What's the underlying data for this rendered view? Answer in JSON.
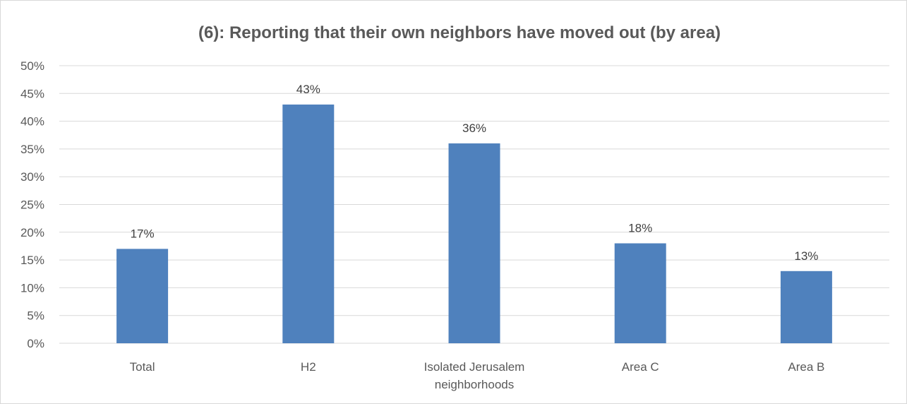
{
  "chart_data": {
    "type": "bar",
    "title": "(6): Reporting that their own neighbors have moved out (by area)",
    "categories": [
      "Total",
      "H2",
      "Isolated Jerusalem neighborhoods",
      "Area C",
      "Area B"
    ],
    "category_lines": [
      [
        "Total"
      ],
      [
        "H2"
      ],
      [
        "Isolated Jerusalem",
        "neighborhoods"
      ],
      [
        "Area C"
      ],
      [
        "Area B"
      ]
    ],
    "values": [
      17,
      43,
      36,
      18,
      13
    ],
    "data_labels": [
      "17%",
      "43%",
      "36%",
      "18%",
      "13%"
    ],
    "ylim": [
      0,
      50
    ],
    "yticks": [
      0,
      5,
      10,
      15,
      20,
      25,
      30,
      35,
      40,
      45,
      50
    ],
    "ytick_labels": [
      "0%",
      "5%",
      "10%",
      "15%",
      "20%",
      "25%",
      "30%",
      "35%",
      "40%",
      "45%",
      "50%"
    ],
    "xlabel": "",
    "ylabel": "",
    "grid": true,
    "legend": "none",
    "bar_color": "#4f81bd",
    "grid_color": "#d9d9d9"
  }
}
